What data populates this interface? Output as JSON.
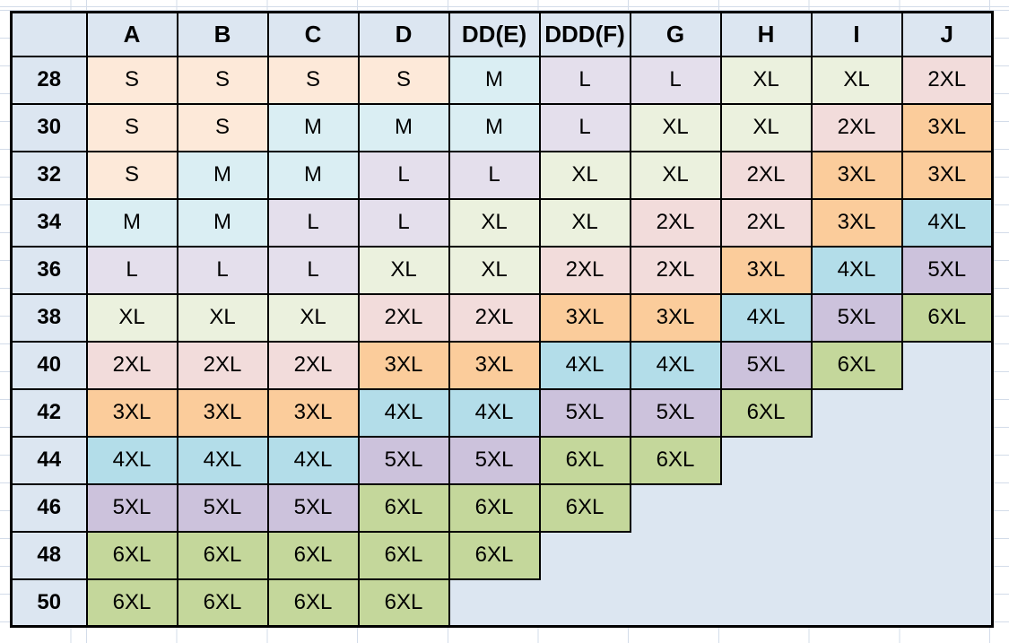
{
  "sheet": {
    "background": "#ffffff",
    "gridline_color": "#d3dce9"
  },
  "table": {
    "corner_label": "",
    "columns": [
      "A",
      "B",
      "C",
      "D",
      "DD(E)",
      "DDD(F)",
      "G",
      "H",
      "I",
      "J"
    ],
    "rows": [
      {
        "band": "28",
        "cells": [
          "S",
          "S",
          "S",
          "S",
          "M",
          "L",
          "L",
          "XL",
          "XL",
          "2XL"
        ]
      },
      {
        "band": "30",
        "cells": [
          "S",
          "S",
          "M",
          "M",
          "M",
          "L",
          "XL",
          "XL",
          "2XL",
          "3XL"
        ]
      },
      {
        "band": "32",
        "cells": [
          "S",
          "M",
          "M",
          "L",
          "L",
          "XL",
          "XL",
          "2XL",
          "3XL",
          "3XL"
        ]
      },
      {
        "band": "34",
        "cells": [
          "M",
          "M",
          "L",
          "L",
          "XL",
          "XL",
          "2XL",
          "2XL",
          "3XL",
          "4XL"
        ]
      },
      {
        "band": "36",
        "cells": [
          "L",
          "L",
          "L",
          "XL",
          "XL",
          "2XL",
          "2XL",
          "3XL",
          "4XL",
          "5XL"
        ]
      },
      {
        "band": "38",
        "cells": [
          "XL",
          "XL",
          "XL",
          "2XL",
          "2XL",
          "3XL",
          "3XL",
          "4XL",
          "5XL",
          "6XL"
        ]
      },
      {
        "band": "40",
        "cells": [
          "2XL",
          "2XL",
          "2XL",
          "3XL",
          "3XL",
          "4XL",
          "4XL",
          "5XL",
          "6XL",
          ""
        ]
      },
      {
        "band": "42",
        "cells": [
          "3XL",
          "3XL",
          "3XL",
          "4XL",
          "4XL",
          "5XL",
          "5XL",
          "6XL",
          "",
          ""
        ]
      },
      {
        "band": "44",
        "cells": [
          "4XL",
          "4XL",
          "4XL",
          "5XL",
          "5XL",
          "6XL",
          "6XL",
          "",
          "",
          ""
        ]
      },
      {
        "band": "46",
        "cells": [
          "5XL",
          "5XL",
          "5XL",
          "6XL",
          "6XL",
          "6XL",
          "",
          "",
          "",
          ""
        ]
      },
      {
        "band": "48",
        "cells": [
          "6XL",
          "6XL",
          "6XL",
          "6XL",
          "6XL",
          "",
          "",
          "",
          "",
          ""
        ]
      },
      {
        "band": "50",
        "cells": [
          "6XL",
          "6XL",
          "6XL",
          "6XL",
          "",
          "",
          "",
          "",
          "",
          ""
        ]
      }
    ],
    "size_colors": {
      "S": "#fde9d9",
      "M": "#daeef3",
      "L": "#e4dfec",
      "XL": "#ebf1de",
      "2XL": "#f2dcdb",
      "3XL": "#fbcc9b",
      "4XL": "#b3dde9",
      "5XL": "#ccc2dc",
      "6XL": "#c4d79b"
    },
    "header_bg": "#dce6f1",
    "empty_bg": "#dce6f1",
    "border_color": "#000000"
  }
}
